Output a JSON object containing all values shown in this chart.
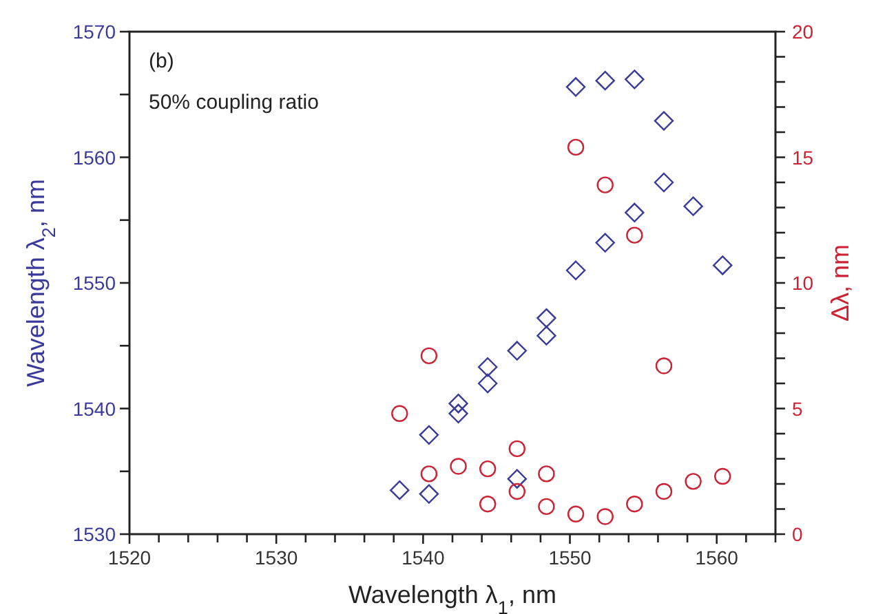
{
  "chart_data": {
    "type": "scatter",
    "xlabel": "Wavelength λ$_{1}$, nm",
    "ylabel": "Wavelength λ$_{2}$, nm",
    "y2label": "Δλ, nm",
    "annotations": [
      "(b)",
      "50% coupling ratio"
    ],
    "xlim": [
      1520,
      1564
    ],
    "xticks": [
      1520,
      {
        "value": 1522,
        "label": null
      },
      {
        "value": 1524,
        "label": null
      },
      {
        "value": 1526,
        "label": null
      },
      {
        "value": 1528,
        "label": null
      },
      1530,
      {
        "value": 1532,
        "label": null
      },
      {
        "value": 1534,
        "label": null
      },
      {
        "value": 1536,
        "label": null
      },
      {
        "value": 1538,
        "label": null
      },
      1540,
      {
        "value": 1542,
        "label": null
      },
      {
        "value": 1544,
        "label": null
      },
      {
        "value": 1546,
        "label": null
      },
      {
        "value": 1548,
        "label": null
      },
      1550,
      {
        "value": 1552,
        "label": null
      },
      {
        "value": 1554,
        "label": null
      },
      {
        "value": 1556,
        "label": null
      },
      {
        "value": 1558,
        "label": null
      },
      1560,
      {
        "value": 1562,
        "label": null
      },
      {
        "value": 1564,
        "label": null
      }
    ],
    "ylim": [
      1530,
      1570
    ],
    "yticks": [
      1530,
      {
        "value": 1535,
        "label": null
      },
      1540,
      {
        "value": 1545,
        "label": null
      },
      1550,
      {
        "value": 1555,
        "label": null
      },
      1560,
      {
        "value": 1565,
        "label": null
      },
      1570
    ],
    "y2lim": [
      0,
      20
    ],
    "y2ticks": [
      0,
      {
        "value": 1,
        "label": null
      },
      {
        "value": 2,
        "label": null
      },
      {
        "value": 3,
        "label": null
      },
      {
        "value": 4,
        "label": null
      },
      5,
      {
        "value": 6,
        "label": null
      },
      {
        "value": 7,
        "label": null
      },
      {
        "value": 8,
        "label": null
      },
      {
        "value": 9,
        "label": null
      },
      10,
      {
        "value": 11,
        "label": null
      },
      {
        "value": 12,
        "label": null
      },
      {
        "value": 13,
        "label": null
      },
      {
        "value": 14,
        "label": null
      },
      15,
      {
        "value": 16,
        "label": null
      },
      {
        "value": 17,
        "label": null
      },
      {
        "value": 18,
        "label": null
      },
      {
        "value": 19,
        "label": null
      },
      20
    ],
    "grid": false,
    "series": [
      {
        "color": "#3a3a9c",
        "marker": "diamond",
        "x": [
          1538.4,
          1540.4,
          1540.4,
          1542.4,
          1542.4,
          1544.4,
          1544.4,
          1546.4,
          1546.4,
          1548.4,
          1548.4,
          1550.4,
          1550.4,
          1552.4,
          1552.4,
          1554.4,
          1554.4,
          1556.4,
          1556.4,
          1558.4,
          1560.4
        ],
        "values": [
          1533.5,
          1533.2,
          1537.9,
          1540.4,
          1539.6,
          1543.3,
          1542.0,
          1544.6,
          1534.4,
          1547.2,
          1545.8,
          1551.0,
          1565.6,
          1553.2,
          1566.1,
          1555.6,
          1566.2,
          1558.0,
          1562.9,
          1556.1,
          1551.4
        ]
      },
      {
        "color": "#cc2233",
        "marker": "circle",
        "axis": "y2",
        "x": [
          1538.4,
          1540.4,
          1540.4,
          1542.4,
          1544.4,
          1544.4,
          1546.4,
          1546.4,
          1548.4,
          1548.4,
          1550.4,
          1550.4,
          1552.4,
          1552.4,
          1554.4,
          1554.4,
          1556.4,
          1556.4,
          1558.4,
          1560.4
        ],
        "values": [
          4.8,
          7.1,
          2.4,
          2.7,
          2.6,
          1.2,
          3.4,
          1.7,
          2.4,
          1.1,
          0.8,
          15.4,
          0.7,
          13.9,
          1.2,
          11.9,
          1.7,
          6.7,
          2.1,
          2.3
        ]
      }
    ]
  }
}
